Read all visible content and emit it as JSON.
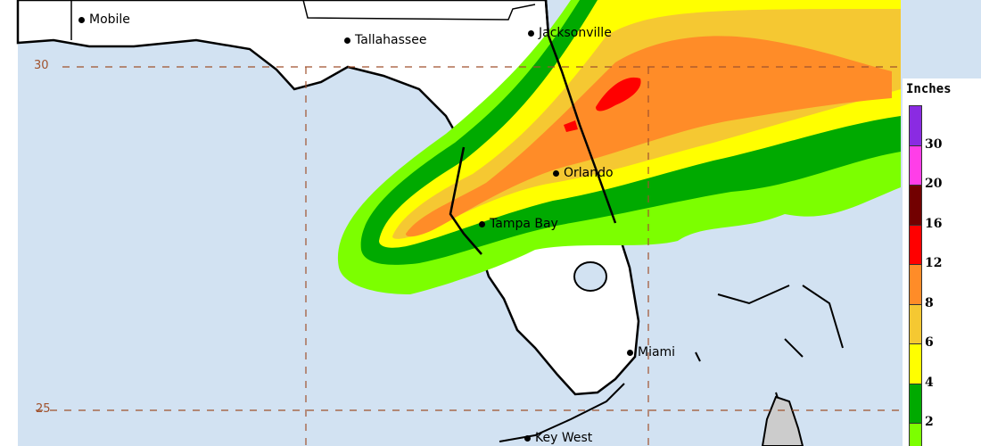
{
  "map": {
    "cities": [
      {
        "name": "Mobile"
      },
      {
        "name": "Tallahassee"
      },
      {
        "name": "Jacksonville"
      },
      {
        "name": "Orlando"
      },
      {
        "name": "Tampa Bay"
      },
      {
        "name": "Miami"
      },
      {
        "name": "Key West"
      }
    ],
    "latitude_labels": [
      "30",
      "25"
    ],
    "colors": {
      "ocean": "#d2e2f2",
      "land": "#ffffff",
      "graticule": "#a0522d"
    }
  },
  "legend": {
    "title": "Inches",
    "bins": [
      {
        "label": "",
        "color": "#8a2be2"
      },
      {
        "label": "30",
        "color": "#ff3ee8"
      },
      {
        "label": "20",
        "color": "#720000"
      },
      {
        "label": "16",
        "color": "#ff0000"
      },
      {
        "label": "12",
        "color": "#ff8c28"
      },
      {
        "label": "8",
        "color": "#f5c832"
      },
      {
        "label": "6",
        "color": "#ffff00"
      },
      {
        "label": "4",
        "color": "#00aa00"
      },
      {
        "label": "2",
        "color": "#7cff00"
      }
    ]
  }
}
